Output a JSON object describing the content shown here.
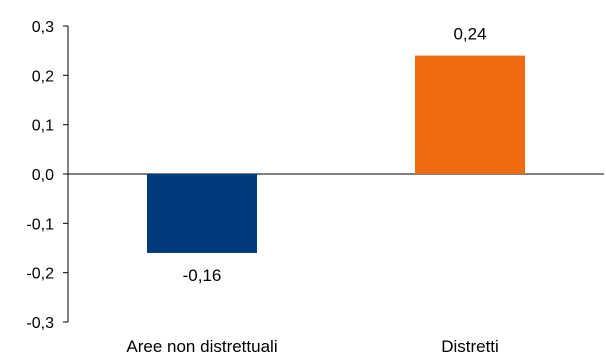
{
  "chart_data": {
    "type": "bar",
    "categories": [
      "Aree non distrettuali",
      "Distretti"
    ],
    "values": [
      -0.16,
      0.24
    ],
    "data_labels": [
      "-0,16",
      "0,24"
    ],
    "colors": [
      "#003a7a",
      "#ef6a10"
    ],
    "title": "",
    "xlabel": "",
    "ylabel": "",
    "ylim": [
      -0.3,
      0.3
    ],
    "yticks": [
      0.3,
      0.2,
      0.1,
      0.0,
      -0.1,
      -0.2,
      -0.3
    ],
    "ytick_labels": [
      "0,3",
      "0,2",
      "0,1",
      "0,0",
      "-0,1",
      "-0,2",
      "-0,3"
    ],
    "grid": false,
    "legend": "none"
  }
}
